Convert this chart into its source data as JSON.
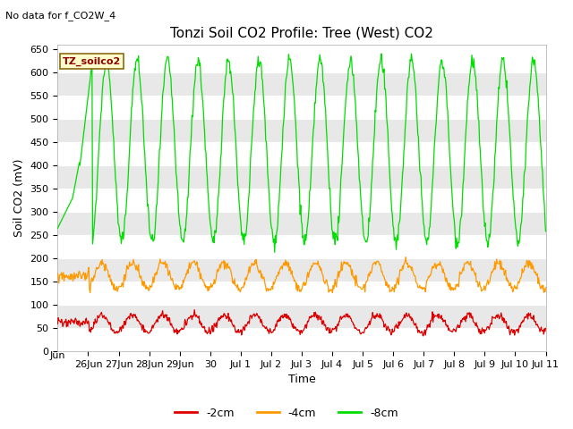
{
  "title": "Tonzi Soil CO2 Profile: Tree (West) CO2",
  "no_data_text": "No data for f_CO2W_4",
  "ylabel": "Soil CO2 (mV)",
  "xlabel": "Time",
  "legend_box_label": "TZ_soilco2",
  "ylim": [
    0,
    660
  ],
  "yticks": [
    0,
    50,
    100,
    150,
    200,
    250,
    300,
    350,
    400,
    450,
    500,
    550,
    600,
    650
  ],
  "line_colors": {
    "-2cm": "#dd0000",
    "-4cm": "#ff9900",
    "-8cm": "#00dd00"
  },
  "legend_entries": [
    "-2cm",
    "-4cm",
    "-8cm"
  ],
  "band_color_even": "#e8e8e8",
  "band_color_odd": "#f5f5f5",
  "background_color": "#ffffff",
  "title_fontsize": 11,
  "label_fontsize": 9,
  "tick_fontsize": 8,
  "x_tick_positions": [
    1,
    2,
    3,
    4,
    5,
    6,
    7,
    8,
    9,
    10,
    11,
    12,
    13,
    14,
    15,
    16
  ],
  "x_tick_labels": [
    "26Jun",
    "27Jun",
    "28Jun",
    "29Jun",
    "30",
    "Jul 1",
    "Jul 2",
    "Jul 3",
    "Jul 4",
    "Jul 5",
    "Jul 6",
    "Jul 7",
    "Jul 8",
    "Jul 9",
    "Jul 10",
    "Jul 11"
  ]
}
